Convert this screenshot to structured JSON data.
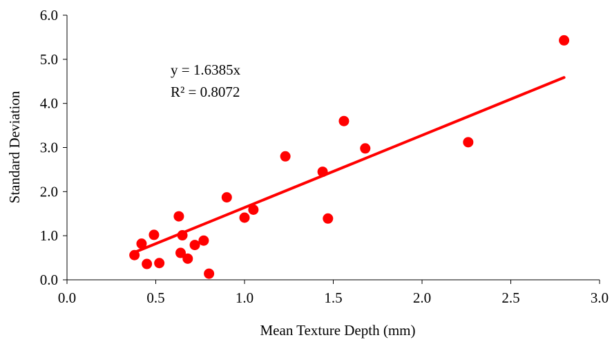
{
  "chart_data": {
    "type": "scatter",
    "xlabel": "Mean Texture Depth (mm)",
    "ylabel": "Standard Deviation",
    "xlim": [
      0.0,
      3.0
    ],
    "ylim": [
      0.0,
      6.0
    ],
    "x_ticks": [
      "0.0",
      "0.5",
      "1.0",
      "1.5",
      "2.0",
      "2.5",
      "3.0"
    ],
    "y_ticks": [
      "0.0",
      "1.0",
      "2.0",
      "3.0",
      "4.0",
      "5.0",
      "6.0"
    ],
    "grid": false,
    "series": [
      {
        "color": "#ff0000",
        "points": [
          {
            "x": 0.38,
            "y": 0.56
          },
          {
            "x": 0.42,
            "y": 0.82
          },
          {
            "x": 0.45,
            "y": 0.36
          },
          {
            "x": 0.49,
            "y": 1.02
          },
          {
            "x": 0.52,
            "y": 0.38
          },
          {
            "x": 0.63,
            "y": 1.44
          },
          {
            "x": 0.64,
            "y": 0.61
          },
          {
            "x": 0.65,
            "y": 1.01
          },
          {
            "x": 0.68,
            "y": 0.48
          },
          {
            "x": 0.72,
            "y": 0.79
          },
          {
            "x": 0.77,
            "y": 0.89
          },
          {
            "x": 0.8,
            "y": 0.14
          },
          {
            "x": 0.9,
            "y": 1.87
          },
          {
            "x": 1.0,
            "y": 1.41
          },
          {
            "x": 1.05,
            "y": 1.59
          },
          {
            "x": 1.23,
            "y": 2.8
          },
          {
            "x": 1.44,
            "y": 2.45
          },
          {
            "x": 1.47,
            "y": 1.39
          },
          {
            "x": 1.56,
            "y": 3.6
          },
          {
            "x": 1.68,
            "y": 2.98
          },
          {
            "x": 2.26,
            "y": 3.12
          },
          {
            "x": 2.8,
            "y": 5.43
          }
        ]
      }
    ],
    "trendline": {
      "type": "linear-through-origin",
      "slope": 1.6385,
      "x_range": [
        0.38,
        2.8
      ],
      "color": "#ff0000"
    },
    "annotations": {
      "equation": "y = 1.6385x",
      "r_squared": "R² = 0.8072"
    }
  }
}
